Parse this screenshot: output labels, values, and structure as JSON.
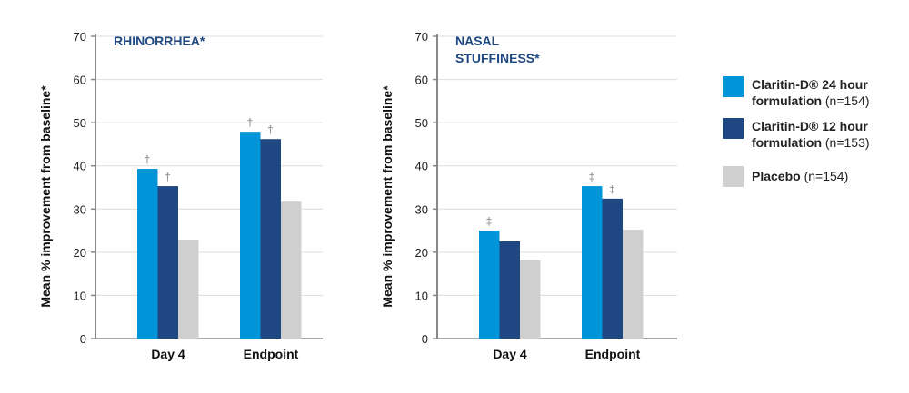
{
  "chart_data": [
    {
      "type": "bar",
      "title": "RHINORRHEA*",
      "ylabel": "Mean % improvement from baseline*",
      "ylim": [
        0,
        70
      ],
      "yticks": [
        0,
        10,
        20,
        30,
        40,
        50,
        60,
        70
      ],
      "grid": true,
      "categories": [
        "Day 4",
        "Endpoint"
      ],
      "series": [
        {
          "name": "Claritin-D® 24 hour formulation (n=154)",
          "values": [
            39.3,
            47.9
          ],
          "markers": [
            "†",
            "†"
          ]
        },
        {
          "name": "Claritin-D® 12 hour formulation (n=153)",
          "values": [
            35.3,
            46.2
          ],
          "markers": [
            "†",
            "†"
          ]
        },
        {
          "name": "Placebo (n=154)",
          "values": [
            22.9,
            31.7
          ],
          "markers": [
            "",
            ""
          ]
        }
      ]
    },
    {
      "type": "bar",
      "title": "NASAL STUFFINESS*",
      "ylabel": "Mean % improvement from baseline*",
      "ylim": [
        0,
        70
      ],
      "yticks": [
        0,
        10,
        20,
        30,
        40,
        50,
        60,
        70
      ],
      "grid": true,
      "categories": [
        "Day 4",
        "Endpoint"
      ],
      "series": [
        {
          "name": "Claritin-D® 24 hour formulation (n=154)",
          "values": [
            25.0,
            35.3
          ],
          "markers": [
            "‡",
            "‡"
          ]
        },
        {
          "name": "Claritin-D® 12 hour formulation (n=153)",
          "values": [
            22.5,
            32.4
          ],
          "markers": [
            "",
            "‡"
          ]
        },
        {
          "name": "Placebo (n=154)",
          "values": [
            18.1,
            25.2
          ],
          "markers": [
            "",
            ""
          ]
        }
      ]
    }
  ],
  "colors": [
    "#0095d9",
    "#1f4883",
    "#cfcfcf"
  ],
  "title_color": "#1f4883",
  "legend": [
    {
      "bold": "Claritin-D® 24 hour formulation",
      "rest": " (n=154)"
    },
    {
      "bold": "Claritin-D® 12 hour formulation",
      "rest": " (n=153)"
    },
    {
      "bold": "Placebo",
      "rest": " (n=154)"
    }
  ]
}
